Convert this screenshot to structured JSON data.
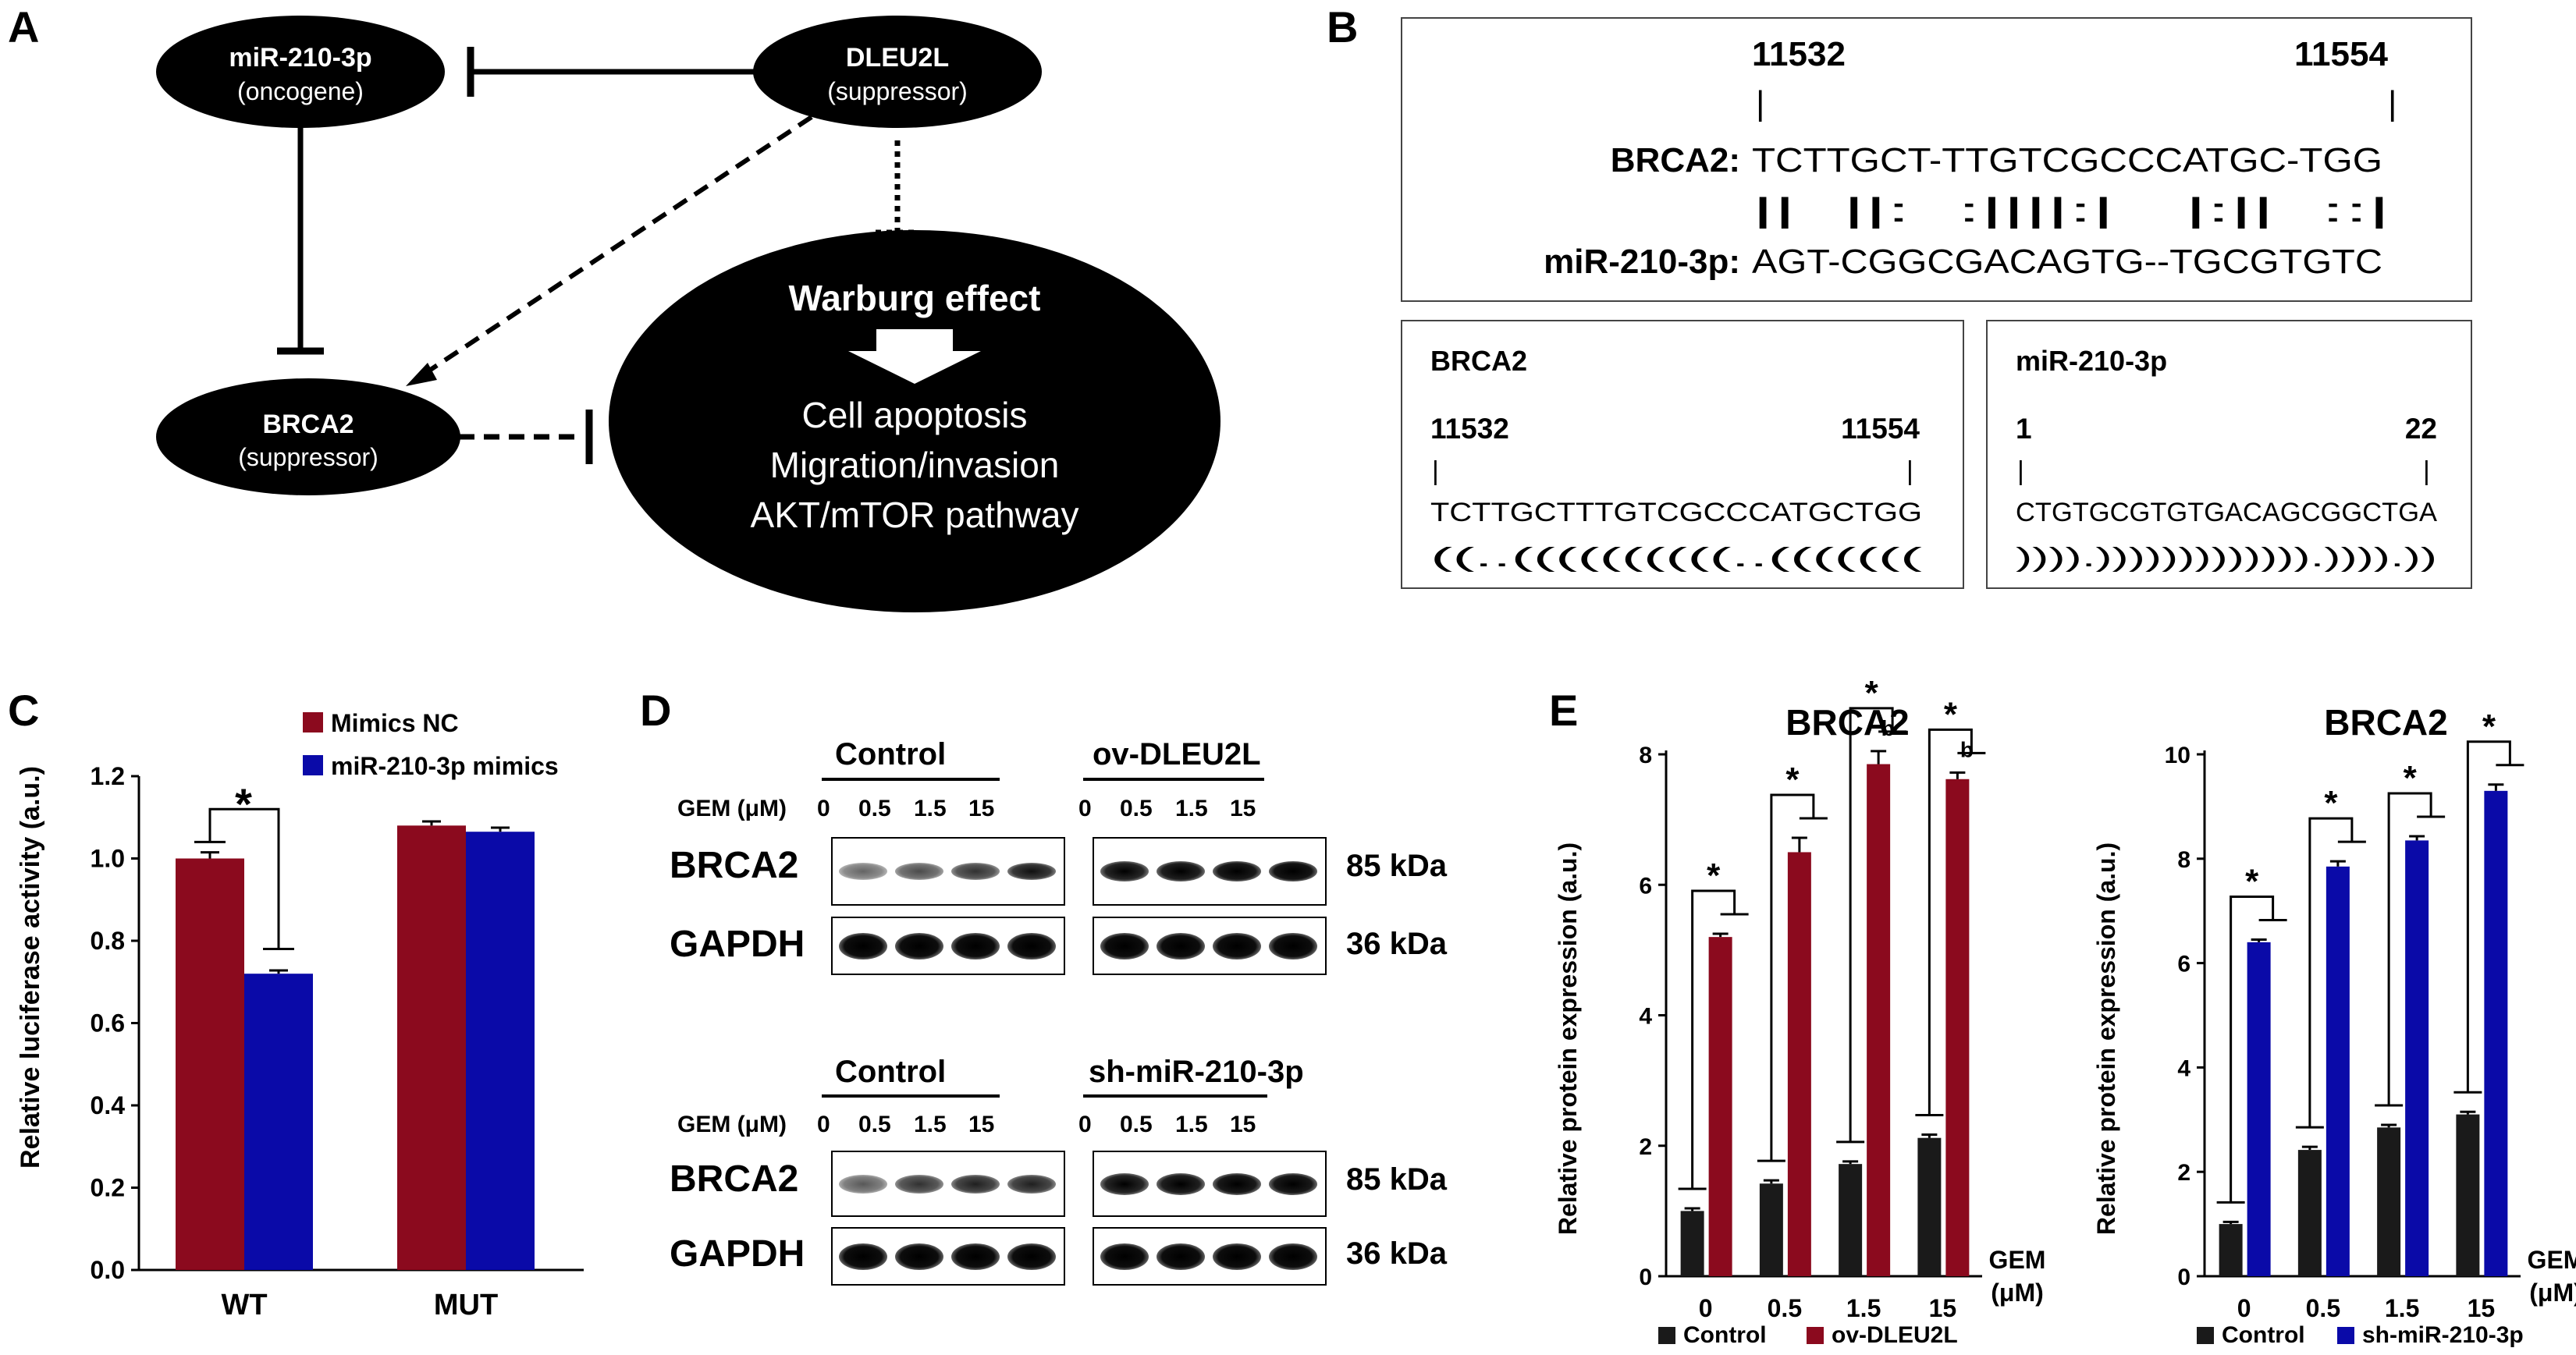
{
  "panel_labels": {
    "A": "A",
    "B": "B",
    "C": "C",
    "D": "D",
    "E": "E"
  },
  "panelA": {
    "mir": {
      "name": "miR-210-3p",
      "role": "(oncogene)"
    },
    "dleu": {
      "name": "DLEU2L",
      "role": "(suppressor)"
    },
    "brca": {
      "name": "BRCA2",
      "role": "(suppressor)"
    },
    "warburg": {
      "title": "Warburg effect",
      "line1": "Cell apoptosis",
      "line2": "Migration/invasion",
      "line3": "AKT/mTOR pathway"
    }
  },
  "panelB": {
    "pos_start": "11532",
    "pos_end": "11554",
    "tick_start": "|",
    "tick_end": "|",
    "brca_label": "BRCA2:",
    "brca_seq": "TCTTGCT-TTGTCGCCCATGC-TGG",
    "match_seq": "||  ||:  :||||:|   |:||  ::|",
    "mir_label": "miR-210-3p:",
    "mir_seq": "AGT-CGGCGACAGTG--TGCGTGTC",
    "left": {
      "title": "BRCA2",
      "start": "11532",
      "end": "11554",
      "tick_start": "|",
      "tick_end": "|",
      "seq": "TCTTGCTTTGTCGCCCATGCTGG",
      "struct": "((..((((((((((..((((((("
    },
    "right": {
      "title": "miR-210-3p",
      "start": "1",
      "end": "22",
      "tick_start": "|",
      "tick_end": "|",
      "seq": "CTGTGCGTGTGACAGCGGCTGA",
      "struct": ")))).))))))))))))).)))).))"
    }
  },
  "panelC": {
    "legend": [
      "Mimics NC",
      "miR-210-3p mimics"
    ],
    "significance": "*",
    "chart_data": {
      "type": "bar",
      "categories": [
        "WT",
        "MUT"
      ],
      "series": [
        {
          "name": "Mimics NC",
          "values": [
            1.0,
            1.08
          ],
          "errors": [
            0.015,
            0.01
          ],
          "color": "#8b0a1e"
        },
        {
          "name": "miR-210-3p mimics",
          "values": [
            0.72,
            1.065
          ],
          "errors": [
            0.008,
            0.01
          ],
          "color": "#0a0aa8"
        }
      ],
      "ylabel": "Relative luciferase activity (a.u.)",
      "ylim": [
        0,
        1.2
      ],
      "yticks": [
        "0.0",
        "0.2",
        "0.4",
        "0.6",
        "0.8",
        "1.0",
        "1.2"
      ],
      "grid": false
    }
  },
  "panelD": {
    "top": {
      "group1": "Control",
      "group2": "ov-DLEU2L"
    },
    "bottom": {
      "group1": "Control",
      "group2": "sh-miR-210-3p"
    },
    "gem_label": "GEM (μM)",
    "doses": [
      "0",
      "0.5",
      "1.5",
      "15"
    ],
    "row1": "BRCA2",
    "row2": "GAPDH",
    "kda1": "85 kDa",
    "kda2": "36 kDa",
    "band_intensity": {
      "top_brca_control": [
        0.45,
        0.55,
        0.65,
        0.78
      ],
      "top_brca_ov": [
        0.85,
        0.88,
        0.9,
        0.92
      ],
      "bottom_brca_control": [
        0.5,
        0.65,
        0.72,
        0.72
      ],
      "bottom_brca_sh": [
        0.85,
        0.88,
        0.9,
        0.9
      ]
    }
  },
  "panelE": {
    "gem_label": [
      "GEM",
      "(μM)"
    ],
    "chart_data": [
      {
        "type": "bar",
        "title": "BRCA2",
        "categories": [
          "0",
          "0.5",
          "1.5",
          "15"
        ],
        "series": [
          {
            "name": "Control",
            "values": [
              1.0,
              1.42,
              1.72,
              2.12
            ],
            "errors": [
              0.04,
              0.05,
              0.04,
              0.05
            ],
            "color": "#1a1a1a"
          },
          {
            "name": "ov-DLEU2L",
            "values": [
              5.2,
              6.5,
              7.85,
              7.62
            ],
            "errors": [
              0.05,
              0.22,
              0.2,
              0.1
            ],
            "color": "#8b0a1e"
          }
        ],
        "ylabel": "Relative protein expression (a.u.)",
        "ylim": [
          0,
          8
        ],
        "yticks": [
          "0",
          "2",
          "4",
          "6",
          "8"
        ],
        "annotations": [
          "*",
          "*",
          "*",
          "*",
          "b",
          "b"
        ]
      },
      {
        "type": "bar",
        "title": "BRCA2",
        "categories": [
          "0",
          "0.5",
          "1.5",
          "15"
        ],
        "series": [
          {
            "name": "Control",
            "values": [
              1.0,
              2.42,
              2.85,
              3.1
            ],
            "errors": [
              0.04,
              0.06,
              0.05,
              0.05
            ],
            "color": "#1a1a1a"
          },
          {
            "name": "sh-miR-210-3p",
            "values": [
              6.4,
              7.85,
              8.35,
              9.3
            ],
            "errors": [
              0.05,
              0.1,
              0.08,
              0.12
            ],
            "color": "#0a0aa8"
          }
        ],
        "ylabel": "Relative protein expression (a.u.)",
        "ylim": [
          0,
          10
        ],
        "yticks": [
          "0",
          "2",
          "4",
          "6",
          "8",
          "10"
        ],
        "annotations": [
          "*",
          "*",
          "*",
          "*"
        ]
      }
    ]
  }
}
